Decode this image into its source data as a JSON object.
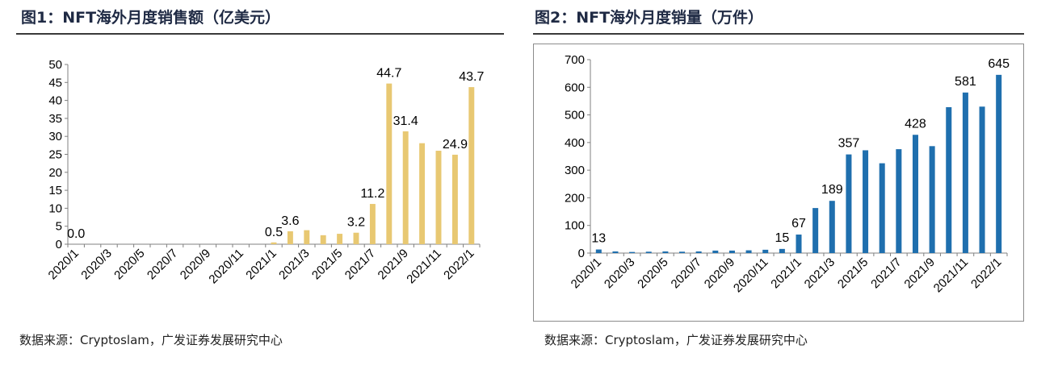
{
  "source_label": "数据来源：Cryptoslam，广发证券发展研究中心",
  "chart_data": [
    {
      "type": "bar",
      "title": "图1：NFT海外月度销售额（亿美元）",
      "categories": [
        "2020/1",
        "2020/2",
        "2020/3",
        "2020/4",
        "2020/5",
        "2020/6",
        "2020/7",
        "2020/8",
        "2020/9",
        "2020/10",
        "2020/11",
        "2020/12",
        "2021/1",
        "2021/2",
        "2021/3",
        "2021/4",
        "2021/5",
        "2021/6",
        "2021/7",
        "2021/8",
        "2021/9",
        "2021/10",
        "2021/11",
        "2021/12",
        "2022/1"
      ],
      "tick_labels": [
        "2020/1",
        "2020/3",
        "2020/5",
        "2020/7",
        "2020/9",
        "2020/11",
        "2021/1",
        "2021/3",
        "2021/5",
        "2021/7",
        "2021/9",
        "2021/11",
        "2022/1"
      ],
      "values": [
        0.0,
        0.0,
        0.0,
        0.0,
        0.0,
        0.0,
        0.0,
        0.0,
        0.0,
        0.0,
        0.0,
        0.0,
        0.5,
        3.6,
        3.9,
        2.5,
        2.9,
        3.2,
        11.2,
        44.7,
        31.4,
        28.1,
        26.0,
        24.9,
        43.7
      ],
      "data_labels": [
        {
          "index": 0,
          "text": "0.0"
        },
        {
          "index": 12,
          "text": "0.5"
        },
        {
          "index": 13,
          "text": "3.6"
        },
        {
          "index": 17,
          "text": "3.2"
        },
        {
          "index": 18,
          "text": "11.2"
        },
        {
          "index": 19,
          "text": "44.7"
        },
        {
          "index": 20,
          "text": "31.4"
        },
        {
          "index": 23,
          "text": "24.9"
        },
        {
          "index": 24,
          "text": "43.7"
        }
      ],
      "ylim": [
        0,
        50
      ],
      "yticks": [
        0,
        5,
        10,
        15,
        20,
        25,
        30,
        35,
        40,
        45,
        50
      ],
      "color": "#E8C872",
      "grid": false,
      "xlabel": "",
      "ylabel": ""
    },
    {
      "type": "bar",
      "title": "图2：NFT海外月度销量（万件）",
      "categories": [
        "2020/1",
        "2020/2",
        "2020/3",
        "2020/4",
        "2020/5",
        "2020/6",
        "2020/7",
        "2020/8",
        "2020/9",
        "2020/10",
        "2020/11",
        "2020/12",
        "2021/1",
        "2021/2",
        "2021/3",
        "2021/4",
        "2021/5",
        "2021/6",
        "2021/7",
        "2021/8",
        "2021/9",
        "2021/10",
        "2021/11",
        "2021/12",
        "2022/1"
      ],
      "tick_labels": [
        "2020/1",
        "2020/3",
        "2020/5",
        "2020/7",
        "2020/9",
        "2020/11",
        "2021/1",
        "2021/3",
        "2021/5",
        "2021/7",
        "2021/9",
        "2021/11",
        "2022/1"
      ],
      "values": [
        13,
        6,
        4,
        5,
        6,
        5,
        6,
        9,
        9,
        10,
        12,
        15,
        67,
        163,
        189,
        357,
        372,
        325,
        376,
        428,
        387,
        528,
        581,
        530,
        645
      ],
      "data_labels": [
        {
          "index": 0,
          "text": "13"
        },
        {
          "index": 11,
          "text": "15"
        },
        {
          "index": 12,
          "text": "67"
        },
        {
          "index": 14,
          "text": "189"
        },
        {
          "index": 15,
          "text": "357"
        },
        {
          "index": 19,
          "text": "428"
        },
        {
          "index": 22,
          "text": "581"
        },
        {
          "index": 24,
          "text": "645"
        }
      ],
      "ylim": [
        0,
        700
      ],
      "yticks": [
        0,
        100,
        200,
        300,
        400,
        500,
        600,
        700
      ],
      "color": "#1F6FAE",
      "grid": false,
      "xlabel": "",
      "ylabel": ""
    }
  ]
}
